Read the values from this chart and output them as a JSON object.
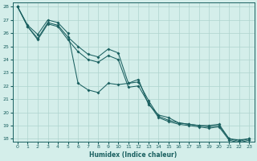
{
  "xlabel": "Humidex (Indice chaleur)",
  "xlim": [
    -0.5,
    23.5
  ],
  "ylim": [
    17.8,
    28.3
  ],
  "xticks": [
    0,
    1,
    2,
    3,
    4,
    5,
    6,
    7,
    8,
    9,
    10,
    11,
    12,
    13,
    14,
    15,
    16,
    17,
    18,
    19,
    20,
    21,
    22,
    23
  ],
  "yticks": [
    18,
    19,
    20,
    21,
    22,
    23,
    24,
    25,
    26,
    27,
    28
  ],
  "bg_color": "#d4eeea",
  "grid_color": "#aed4ce",
  "line_color": "#1a6060",
  "line1": {
    "x": [
      0,
      1,
      2,
      3,
      4,
      5,
      6,
      7,
      8,
      9,
      10,
      11,
      12,
      13,
      14,
      15,
      16,
      17,
      18,
      19,
      20,
      21,
      22,
      23
    ],
    "y": [
      28,
      26.6,
      25.9,
      27.0,
      26.8,
      26.0,
      22.2,
      21.7,
      21.5,
      22.2,
      22.1,
      22.2,
      22.5,
      20.6,
      19.8,
      19.6,
      19.2,
      19.1,
      19.0,
      19.0,
      19.1,
      18.0,
      17.9,
      18.0
    ]
  },
  "line2": {
    "x": [
      0,
      1,
      2,
      3,
      4,
      5,
      6,
      7,
      8,
      9,
      10,
      11,
      12,
      13,
      14,
      15,
      16,
      17,
      18,
      19,
      20,
      21,
      22,
      23
    ],
    "y": [
      28,
      26.5,
      25.6,
      26.8,
      26.6,
      25.7,
      25.0,
      24.4,
      24.2,
      24.8,
      24.5,
      22.2,
      22.3,
      20.9,
      19.7,
      19.4,
      19.2,
      19.1,
      19.0,
      18.9,
      19.0,
      18.0,
      17.8,
      18.0
    ]
  },
  "line3": {
    "x": [
      0,
      1,
      2,
      3,
      4,
      5,
      6,
      7,
      8,
      9,
      10,
      11,
      12,
      13,
      14,
      15,
      16,
      17,
      18,
      19,
      20,
      21,
      22,
      23
    ],
    "y": [
      28,
      26.5,
      25.5,
      26.7,
      26.5,
      25.5,
      24.6,
      24.0,
      23.8,
      24.3,
      24.0,
      21.9,
      22.0,
      20.7,
      19.6,
      19.3,
      19.1,
      19.0,
      18.9,
      18.8,
      18.9,
      17.9,
      17.7,
      17.9
    ]
  }
}
